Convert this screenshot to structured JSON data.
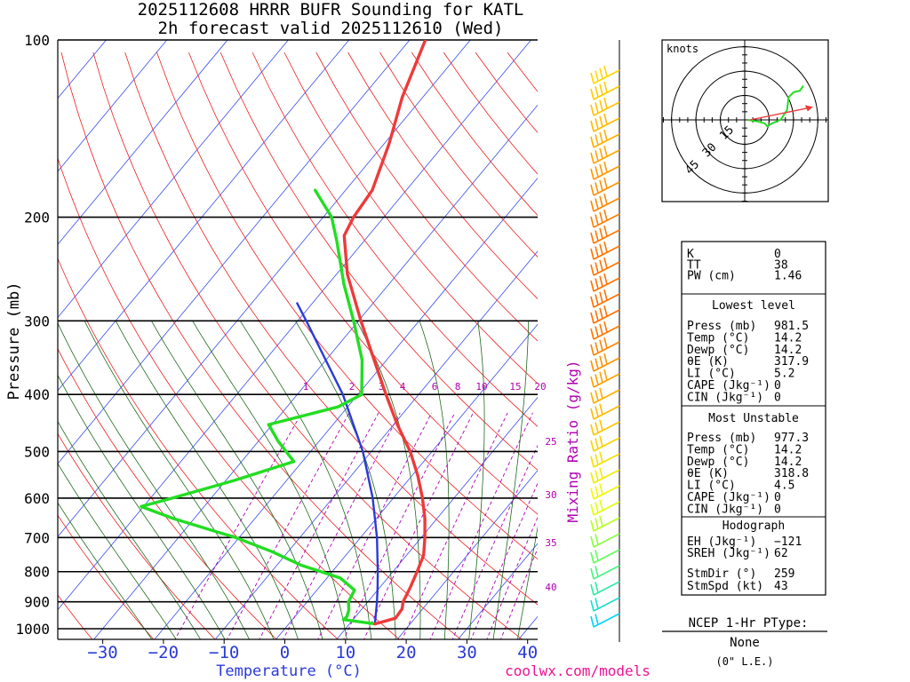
{
  "chart_data": {
    "type": "skew-t",
    "title_line1": "2025112608 HRRR BUFR Sounding for KATL",
    "title_line2": "2h forecast valid 2025112610 (Wed)",
    "xlabel": "Temperature (°C)",
    "ylabel": "Pressure (mb)",
    "mixing_ratio_label": "Mixing Ratio (g/kg)",
    "credit": "coolwx.com/models",
    "x_ticks": [
      "−30",
      "−20",
      "−10",
      "0",
      "10",
      "20",
      "30",
      "40"
    ],
    "x_tick_values": [
      -30,
      -20,
      -10,
      0,
      10,
      20,
      30,
      40
    ],
    "xlim": [
      -37,
      42
    ],
    "ylim": [
      100,
      1050
    ],
    "pressure_ticks": [
      100,
      200,
      300,
      400,
      500,
      600,
      700,
      800,
      900,
      1000
    ],
    "pressure_tick_labels": [
      "100",
      "200",
      "300",
      "400",
      "500",
      "600",
      "700",
      "800",
      "900",
      "1000"
    ],
    "mixing_ratio_values": [
      "1",
      "2",
      "3",
      "4",
      "6",
      "8",
      "10",
      "15",
      "20",
      "25",
      "30",
      "35",
      "40"
    ],
    "temperature_profile": [
      {
        "p": 981.5,
        "t": 14.2
      },
      {
        "p": 960,
        "t": 16.8
      },
      {
        "p": 925,
        "t": 16.6
      },
      {
        "p": 900,
        "t": 15.8
      },
      {
        "p": 850,
        "t": 15.0
      },
      {
        "p": 800,
        "t": 14.0
      },
      {
        "p": 750,
        "t": 12.8
      },
      {
        "p": 700,
        "t": 10.6
      },
      {
        "p": 650,
        "t": 8.0
      },
      {
        "p": 600,
        "t": 4.8
      },
      {
        "p": 550,
        "t": 1.0
      },
      {
        "p": 500,
        "t": -3.6
      },
      {
        "p": 450,
        "t": -9.4
      },
      {
        "p": 400,
        "t": -15.4
      },
      {
        "p": 350,
        "t": -22.0
      },
      {
        "p": 300,
        "t": -29.6
      },
      {
        "p": 250,
        "t": -38.2
      },
      {
        "p": 215,
        "t": -44.0
      },
      {
        "p": 200,
        "t": -45.0
      },
      {
        "p": 180,
        "t": -45.6
      },
      {
        "p": 150,
        "t": -49.2
      },
      {
        "p": 125,
        "t": -53.4
      },
      {
        "p": 100,
        "t": -57.4
      }
    ],
    "dewpoint_profile": [
      {
        "p": 981.5,
        "t": 14.2
      },
      {
        "p": 965,
        "t": 8.4
      },
      {
        "p": 955,
        "t": 8.6
      },
      {
        "p": 930,
        "t": 8.0
      },
      {
        "p": 900,
        "t": 6.8
      },
      {
        "p": 860,
        "t": 6.2
      },
      {
        "p": 820,
        "t": 2.2
      },
      {
        "p": 780,
        "t": -6.0
      },
      {
        "p": 740,
        "t": -12.6
      },
      {
        "p": 700,
        "t": -20.6
      },
      {
        "p": 650,
        "t": -33.4
      },
      {
        "p": 620,
        "t": -40.4
      },
      {
        "p": 600,
        "t": -36.4
      },
      {
        "p": 560,
        "t": -28.6
      },
      {
        "p": 520,
        "t": -21.4
      },
      {
        "p": 480,
        "t": -26.8
      },
      {
        "p": 450,
        "t": -30.6
      },
      {
        "p": 420,
        "t": -21.6
      },
      {
        "p": 400,
        "t": -19.4
      },
      {
        "p": 350,
        "t": -24.0
      },
      {
        "p": 300,
        "t": -30.8
      },
      {
        "p": 260,
        "t": -37.4
      },
      {
        "p": 220,
        "t": -44.4
      },
      {
        "p": 200,
        "t": -48.6
      },
      {
        "p": 180,
        "t": -55.0
      }
    ],
    "parcel_path": [
      {
        "p": 981.5,
        "t": 14.2
      },
      {
        "p": 900,
        "t": 11.5
      },
      {
        "p": 850,
        "t": 9.6
      },
      {
        "p": 800,
        "t": 7.5
      },
      {
        "p": 700,
        "t": 2.7
      },
      {
        "p": 600,
        "t": -3.4
      },
      {
        "p": 500,
        "t": -11.4
      },
      {
        "p": 400,
        "t": -22.5
      },
      {
        "p": 300,
        "t": -38.6
      },
      {
        "p": 280,
        "t": -42.5
      }
    ],
    "hodograph": {
      "label": "knots",
      "ring_labels": [
        "15",
        "30",
        "45"
      ],
      "ring_values": [
        15,
        30,
        45
      ],
      "trace_uv": [
        [
          2,
          0
        ],
        [
          8,
          -1
        ],
        [
          12,
          -2
        ],
        [
          14,
          -4
        ],
        [
          17,
          -2
        ],
        [
          22,
          0
        ],
        [
          24,
          3
        ],
        [
          26,
          6
        ],
        [
          27,
          14
        ],
        [
          30,
          17
        ],
        [
          34,
          18
        ],
        [
          36,
          21
        ]
      ],
      "storm_motion_uv": [
        42,
        8
      ]
    },
    "indices": {
      "general": [
        {
          "label": "K",
          "value": "0"
        },
        {
          "label": "TT",
          "value": "38"
        },
        {
          "label": "PW (cm)",
          "value": "1.46"
        }
      ],
      "lowest_level_title": "Lowest level",
      "lowest_level": [
        {
          "label": "Press (mb)",
          "value": "981.5"
        },
        {
          "label": "Temp (°C)",
          "value": "14.2"
        },
        {
          "label": "Dewp (°C)",
          "value": "14.2"
        },
        {
          "label": "θE (K)",
          "value": "317.9"
        },
        {
          "label": "LI (°C)",
          "value": "5.2"
        },
        {
          "label": "CAPE (Jkg⁻¹)",
          "value": "0"
        },
        {
          "label": "CIN (Jkg⁻¹)",
          "value": "0"
        }
      ],
      "most_unstable_title": "Most Unstable",
      "most_unstable": [
        {
          "label": "Press (mb)",
          "value": "977.3"
        },
        {
          "label": "Temp (°C)",
          "value": "14.2"
        },
        {
          "label": "Dewp (°C)",
          "value": "14.2"
        },
        {
          "label": "θE (K)",
          "value": "318.8"
        },
        {
          "label": "LI (°C)",
          "value": "4.5"
        },
        {
          "label": "CAPE (Jkg⁻¹)",
          "value": "0"
        },
        {
          "label": "CIN (Jkg⁻¹)",
          "value": "0"
        }
      ],
      "hodograph_title": "Hodograph",
      "hodograph_values": [
        {
          "label": "EH (Jkg⁻¹)",
          "value": "−121"
        },
        {
          "label": "SREH (Jkg⁻¹)",
          "value": "62"
        },
        {
          "label": "StmDir (°)",
          "value": "259"
        },
        {
          "label": "StmSpd (kt)",
          "value": "43"
        }
      ]
    },
    "ptype": {
      "title": "NCEP 1-Hr PType:",
      "value": "None",
      "amount": "(0\" L.E.)"
    },
    "colors": {
      "temperature": "#ee3a3a",
      "dewpoint": "#22dd22",
      "parcel": "#2a3ad8",
      "isotherm": "#3a4ee8",
      "dry_adiabat": "#ee2020",
      "moist_adiabat": "#1f6a1f",
      "mixing_ratio": "#b000b0"
    }
  }
}
